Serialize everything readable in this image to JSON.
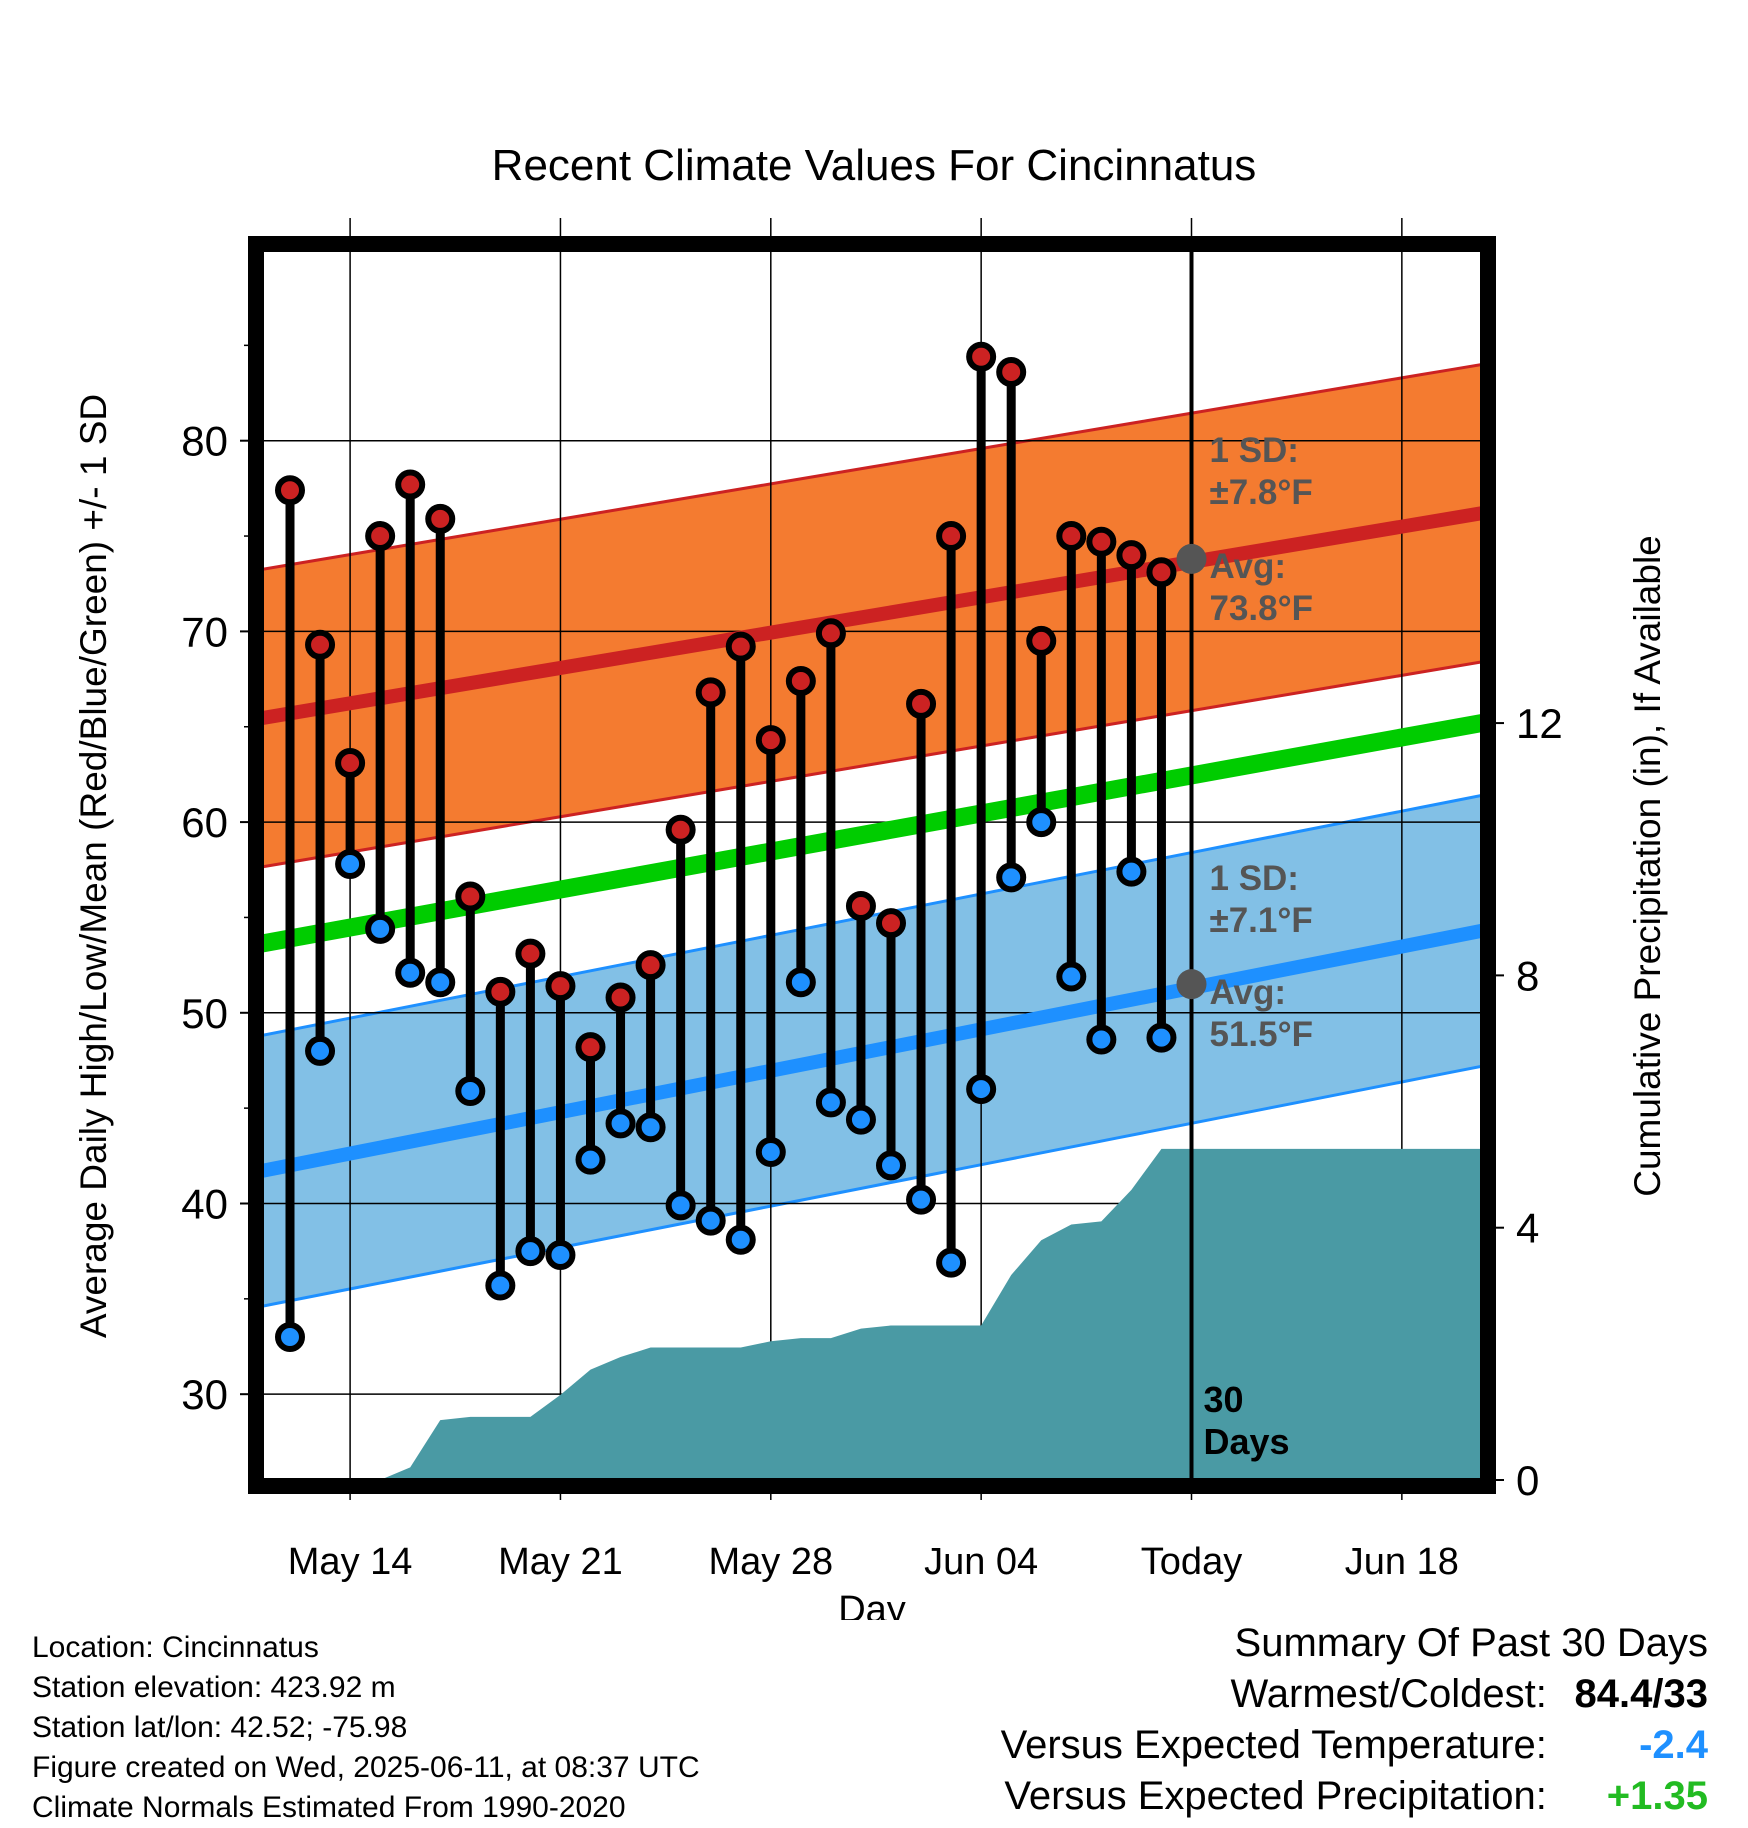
{
  "chart_data": {
    "type": "line",
    "title": "Recent Climate Values For Cincinnatus",
    "xlabel": "Day",
    "ylabel": "Average Daily High/Low/Mean (Red/Blue/Green) +/- 1 SD",
    "y2label": "Cumulative Precipitation (in), If Available",
    "x_tick_labels": [
      "May 14",
      "May 21",
      "May 28",
      "Jun 04",
      "Today",
      "Jun 18"
    ],
    "y_ticks": [
      30,
      40,
      50,
      60,
      70,
      80
    ],
    "y2_ticks": [
      0,
      4,
      8,
      12
    ],
    "ylim": [
      25.5,
      90
    ],
    "y2lim": [
      0,
      19.5
    ],
    "grid": true,
    "days": [
      "May 12",
      "May 13",
      "May 14",
      "May 15",
      "May 16",
      "May 17",
      "May 18",
      "May 19",
      "May 20",
      "May 21",
      "May 22",
      "May 23",
      "May 24",
      "May 25",
      "May 26",
      "May 27",
      "May 28",
      "May 29",
      "May 30",
      "May 31",
      "Jun 01",
      "Jun 02",
      "Jun 03",
      "Jun 04",
      "Jun 05",
      "Jun 06",
      "Jun 07",
      "Jun 08",
      "Jun 09",
      "Jun 10"
    ],
    "highs": [
      77.4,
      69.3,
      63.1,
      75.0,
      77.7,
      75.9,
      56.1,
      51.1,
      53.1,
      51.4,
      48.2,
      50.8,
      52.5,
      59.6,
      66.8,
      69.2,
      64.3,
      67.4,
      69.9,
      55.6,
      54.7,
      66.2,
      75.0,
      84.4,
      83.6,
      69.5,
      75.0,
      74.7,
      74.0,
      73.1
    ],
    "lows": [
      33.0,
      48.0,
      57.8,
      54.4,
      52.1,
      51.6,
      45.9,
      35.7,
      37.5,
      37.3,
      42.3,
      44.2,
      44.0,
      39.9,
      39.1,
      38.1,
      42.7,
      51.6,
      45.3,
      44.4,
      42.0,
      40.2,
      36.9,
      46.0,
      57.1,
      60.0,
      51.9,
      48.6,
      57.4,
      48.7
    ],
    "precip_cumulative": [
      0,
      0,
      0,
      0,
      0.2,
      0.95,
      1.0,
      1.0,
      1.0,
      1.35,
      1.75,
      1.95,
      2.1,
      2.1,
      2.1,
      2.1,
      2.2,
      2.25,
      2.25,
      2.4,
      2.45,
      2.45,
      2.45,
      2.45,
      3.25,
      3.8,
      4.05,
      4.1,
      4.6,
      5.25
    ],
    "precip_days": [
      "May 12",
      "May 13",
      "May 14",
      "May 15",
      "May 16",
      "May 17",
      "May 18",
      "May 19",
      "May 20",
      "May 21",
      "May 22",
      "May 23",
      "May 24",
      "May 25",
      "May 26",
      "May 27",
      "May 28",
      "May 29",
      "May 30",
      "May 31",
      "Jun 01",
      "Jun 02",
      "Jun 03",
      "Jun 04",
      "Jun 05",
      "Jun 06",
      "Jun 07",
      "Jun 08",
      "Jun 09",
      "Jun 10"
    ],
    "precip_after_today": 5.25,
    "normal_high": {
      "start": 65.7,
      "end": 76.2,
      "sd": 7.8
    },
    "normal_low": {
      "start": 42.0,
      "end": 54.3,
      "sd": 7.1
    },
    "normal_mean": {
      "start": 53.9,
      "end": 65.2
    },
    "today_high_avg": 73.8,
    "today_low_avg": 51.5,
    "annotations": {
      "high_sd_label": "1 SD:",
      "high_sd_value": "±7.8°F",
      "high_avg_label": "Avg:",
      "high_avg_value": "73.8°F",
      "low_sd_label": "1 SD:",
      "low_sd_value": "±7.1°F",
      "low_avg_label": "Avg:",
      "low_avg_value": "51.5°F",
      "window_value": "30",
      "window_unit": "Days"
    },
    "colors": {
      "high_band": "#f47b30",
      "high_line": "#cc2222",
      "low_band": "#82c0e6",
      "low_line": "#1e90ff",
      "mean_line": "#00cc00",
      "precip": "#4a9aa4",
      "high_dot": "#cc2222",
      "low_dot": "#1e90ff",
      "avg_dot": "#555555",
      "annotation_text": "#555555"
    }
  },
  "info": {
    "location": "Location: Cincinnatus",
    "elevation": "Station elevation: 423.92 m",
    "latlon": "Station lat/lon: 42.52; -75.98",
    "created": "Figure created on Wed, 2025-06-11, at 08:37 UTC",
    "normals": "Climate Normals Estimated From 1990-2020"
  },
  "summary": {
    "title": "Summary Of Past 30 Days",
    "warmest_label": "Warmest/Coldest:",
    "warmest_value": "84.4/33",
    "temp_label": "Versus Expected Temperature:",
    "temp_value": "-2.4",
    "temp_color": "#1e90ff",
    "precip_label": "Versus Expected Precipitation:",
    "precip_value": "+1.35",
    "precip_color": "#22bb22"
  }
}
